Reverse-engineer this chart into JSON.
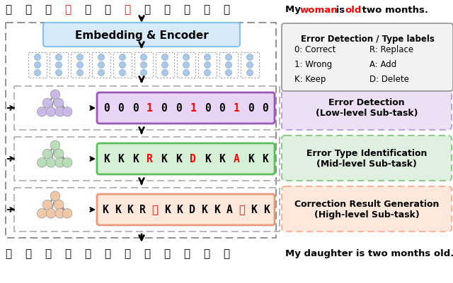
{
  "fig_width": 6.4,
  "fig_height": 4.02,
  "dpi": 100,
  "bg_color": "#ffffff",
  "top_chinese": [
    "我",
    "的",
    "女",
    "子",
    "已",
    "经",
    "大",
    "两",
    "个",
    "月",
    "了",
    "。"
  ],
  "top_chinese_colors": [
    "black",
    "black",
    "black",
    "red",
    "black",
    "black",
    "red",
    "black",
    "black",
    "black",
    "black",
    "black"
  ],
  "bottom_chinese": [
    "我",
    "的",
    "女",
    "儔",
    "已",
    "经",
    "两",
    "个",
    "月",
    "大",
    "了",
    "。"
  ],
  "bottom_english": "My daughter is two months old.",
  "encoder_label": "Embedding & Encoder",
  "encoder_bg": "#d6eaf8",
  "encoder_border": "#85c1e9",
  "legend_title": "Error Detection / Type labels",
  "legend_items_col1": [
    "0: Correct",
    "1: Wrong",
    "K: Keep"
  ],
  "legend_items_col2": [
    "R: Replace",
    "A: Add",
    "D: Delete"
  ],
  "detection_sequence": [
    "0",
    "0",
    "0",
    "1",
    "0",
    "0",
    "1",
    "0",
    "0",
    "1",
    "0",
    "0"
  ],
  "detection_colors": [
    "black",
    "black",
    "black",
    "red",
    "black",
    "black",
    "red",
    "black",
    "black",
    "red",
    "black",
    "black"
  ],
  "detection_bg": "#e8d5f5",
  "detection_border": "#9b59b6",
  "type_sequence": [
    "K",
    "K",
    "K",
    "R",
    "K",
    "K",
    "D",
    "K",
    "K",
    "A",
    "K",
    "K"
  ],
  "type_colors": [
    "black",
    "black",
    "black",
    "red",
    "black",
    "black",
    "red",
    "black",
    "black",
    "red",
    "black",
    "black"
  ],
  "type_bg": "#d5f0d5",
  "type_border": "#5dbe5d",
  "correction_sequence": [
    "K",
    "K",
    "K",
    "R",
    "儔",
    "K",
    "K",
    "D",
    "K",
    "K",
    "A",
    "大",
    "K",
    "K"
  ],
  "correction_colors": [
    "black",
    "black",
    "black",
    "black",
    "red",
    "black",
    "black",
    "black",
    "black",
    "black",
    "black",
    "red",
    "black",
    "black"
  ],
  "correction_bg": "#fde8db",
  "correction_border": "#e59b7a",
  "node_color_purple": "#c9b8e8",
  "node_color_green": "#b8ddb8",
  "node_color_orange": "#f0c8a8",
  "subtask_labels": [
    "Error Detection\n(Low-level Sub-task)",
    "Error Type Identification\n(Mid-level Sub-task)",
    "Correction Result Generation\n(High-level Sub-task)"
  ],
  "subtask_bgs": [
    "#ede0f5",
    "#e0f0e0",
    "#fde8db"
  ],
  "subtask_borders": [
    "#b39ddb",
    "#81c784",
    "#ffab91"
  ],
  "outer_box_color": "#888888",
  "inner_box_color": "#aaaaaa"
}
